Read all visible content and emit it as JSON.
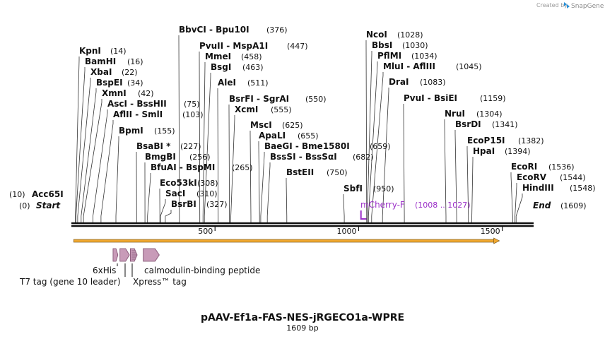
{
  "credit": {
    "created_by": "Created by",
    "brand": "SnapGene"
  },
  "title": "pAAV-Ef1a-FAS-NES-jRGECO1a-WPRE",
  "length_label": "1609 bp",
  "ends": [
    {
      "pos": "(10)",
      "name": "Acc65I",
      "italic": false
    },
    {
      "pos": "(0)",
      "name": "Start",
      "italic": true
    }
  ],
  "end_label": {
    "name": "End",
    "pos": "(1609)"
  },
  "ticks": [
    {
      "label": "500",
      "bp": 500
    },
    {
      "label": "1000",
      "bp": 1000
    },
    {
      "label": "1500",
      "bp": 1500
    }
  ],
  "sites": [
    {
      "text": "KpnI",
      "pos": "(14)",
      "bp": 14
    },
    {
      "text": "BamHI",
      "pos": "(16)",
      "bp": 16
    },
    {
      "text": "XbaI",
      "pos": "(22)",
      "bp": 22
    },
    {
      "text": "BspEI",
      "pos": "(34)",
      "bp": 34
    },
    {
      "text": "XmnI",
      "pos": "(42)",
      "bp": 42
    },
    {
      "text": "AscI  - BssHII",
      "pos": "(75)",
      "bp": 75
    },
    {
      "text": "AflII  - SmlI",
      "pos": "(103)",
      "bp": 103
    },
    {
      "text": "BpmI",
      "pos": "(155)",
      "bp": 155
    },
    {
      "text": "BsaBI *",
      "pos": "(227)",
      "bp": 227
    },
    {
      "text": "BmgBI",
      "pos": "(256)",
      "bp": 256
    },
    {
      "text": "BfuAI  - BspMI",
      "pos": "(265)",
      "bp": 265
    },
    {
      "text": "Eco53kI",
      "pos": "(308)",
      "bp": 308
    },
    {
      "text": "SacI",
      "pos": "(310)",
      "bp": 310
    },
    {
      "text": "BsrBI",
      "pos": "(327)",
      "bp": 327
    },
    {
      "text": "BbvCI  - Bpu10I",
      "pos": "(376)",
      "bp": 376
    },
    {
      "text": "PvuII  - MspA1I",
      "pos": "(447)",
      "bp": 447
    },
    {
      "text": "MmeI",
      "pos": "(458)",
      "bp": 458
    },
    {
      "text": "BsgI",
      "pos": "(463)",
      "bp": 463
    },
    {
      "text": "AleI",
      "pos": "(511)",
      "bp": 511
    },
    {
      "text": "BsrFI  - SgrAI",
      "pos": "(550)",
      "bp": 550
    },
    {
      "text": "XcmI",
      "pos": "(555)",
      "bp": 555
    },
    {
      "text": "MscI",
      "pos": "(625)",
      "bp": 625
    },
    {
      "text": "ApaLI",
      "pos": "(655)",
      "bp": 655
    },
    {
      "text": "BaeGI  - Bme1580I",
      "pos": "(659)",
      "bp": 659
    },
    {
      "text": "BssSI  - BssSαI",
      "pos": "(682)",
      "bp": 682
    },
    {
      "text": "BstEII",
      "pos": "(750)",
      "bp": 750
    },
    {
      "text": "SbfI",
      "pos": "(950)",
      "bp": 950
    },
    {
      "text": "NcoI",
      "pos": "(1028)",
      "bp": 1028
    },
    {
      "text": "BbsI",
      "pos": "(1030)",
      "bp": 1030
    },
    {
      "text": "PflMI",
      "pos": "(1034)",
      "bp": 1034
    },
    {
      "text": "MluI  - AflIII",
      "pos": "(1045)",
      "bp": 1045
    },
    {
      "text": "DraI",
      "pos": "(1083)",
      "bp": 1083
    },
    {
      "text": "PvuI  - BsiEI",
      "pos": "(1159)",
      "bp": 1159
    },
    {
      "text": "NruI",
      "pos": "(1304)",
      "bp": 1304
    },
    {
      "text": "BsrDI",
      "pos": "(1341)",
      "bp": 1341
    },
    {
      "text": "EcoP15I",
      "pos": "(1382)",
      "bp": 1382
    },
    {
      "text": "HpaI",
      "pos": "(1394)",
      "bp": 1394
    },
    {
      "text": "EcoRI",
      "pos": "(1536)",
      "bp": 1536
    },
    {
      "text": "EcoRV",
      "pos": "(1544)",
      "bp": 1544
    },
    {
      "text": "HindIII",
      "pos": "(1548)",
      "bp": 1548
    }
  ],
  "primer": {
    "name": "mCherry-F",
    "range": "(1008 .. 1027)",
    "start_bp": 1008,
    "end_bp": 1027
  },
  "orf": {
    "start_bp": 8,
    "end_bp": 1490
  },
  "features": [
    {
      "name": "6xHis",
      "start_bp": 145,
      "end_bp": 162
    },
    {
      "name": "T7 tag (gene 10 leader)",
      "start_bp": 169,
      "end_bp": 202
    },
    {
      "name": "Xpress™ tag",
      "start_bp": 205,
      "end_bp": 229
    },
    {
      "name": "calmodulin-binding peptide",
      "start_bp": 250,
      "end_bp": 306
    }
  ],
  "colors": {
    "feature_fill": "#c89bb8",
    "feature_stroke": "#7a4a6a",
    "orf": "#f0a830",
    "primer": "#9b30c8",
    "brand": "#2a8fd6"
  }
}
